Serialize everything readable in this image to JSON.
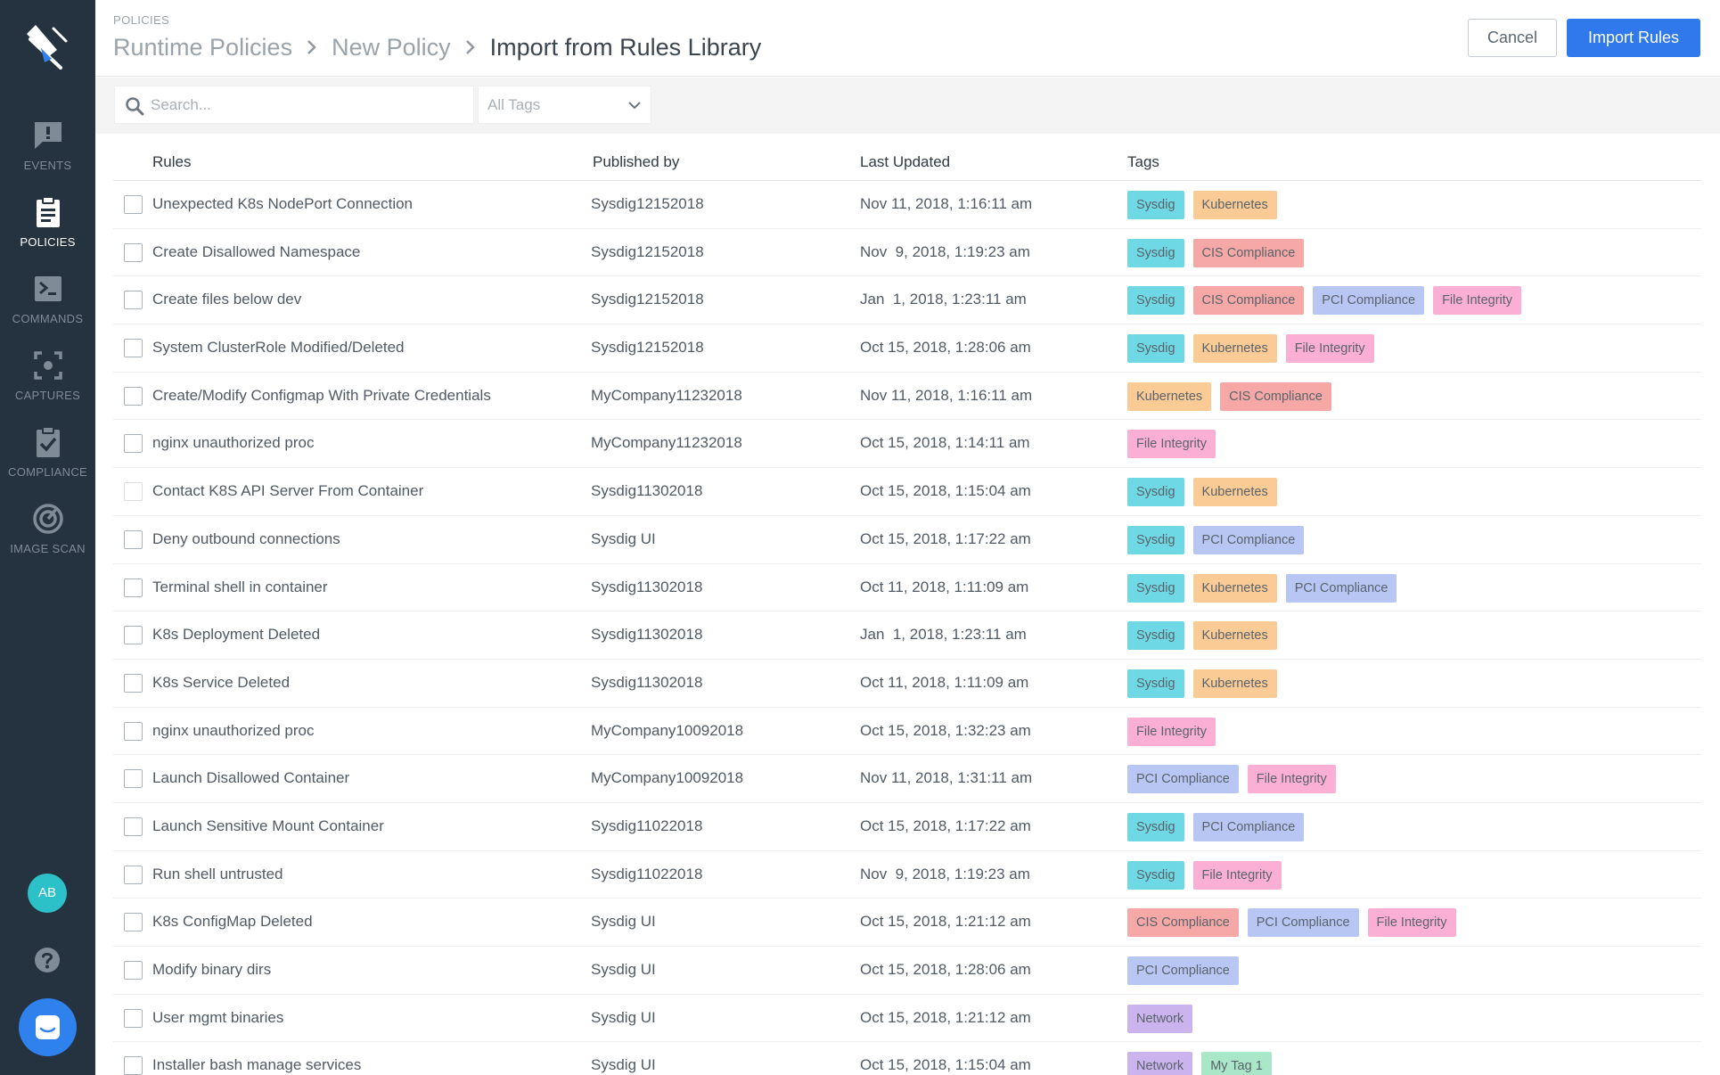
{
  "nav": {
    "items": [
      {
        "label": "EVENTS",
        "icon": "alert-message-icon",
        "active": false
      },
      {
        "label": "POLICIES",
        "icon": "clipboard-icon",
        "active": true
      },
      {
        "label": "COMMANDS",
        "icon": "terminal-icon",
        "active": false
      },
      {
        "label": "CAPTURES",
        "icon": "capture-frame-icon",
        "active": false
      },
      {
        "label": "COMPLIANCE",
        "icon": "clipboard-check-icon",
        "active": false
      },
      {
        "label": "IMAGE SCAN",
        "icon": "radar-icon",
        "active": false
      }
    ],
    "avatar_initials": "AB"
  },
  "header": {
    "section_label": "POLICIES",
    "breadcrumbs": [
      "Runtime Policies",
      "New Policy",
      "Import from Rules Library"
    ],
    "cancel_label": "Cancel",
    "import_label": "Import Rules"
  },
  "filters": {
    "search_placeholder": "Search...",
    "tags_select_value": "All Tags"
  },
  "table": {
    "columns": [
      "Rules",
      "Published by",
      "Last Updated",
      "Tags"
    ],
    "rows": [
      {
        "rule": "Unexpected K8s NodePort Connection",
        "published_by": "Sysdig12152018",
        "last_updated": "Nov 11, 2018, 1:16:11 am",
        "tags": [
          "Sysdig",
          "Kubernetes"
        ]
      },
      {
        "rule": "Create Disallowed Namespace",
        "published_by": "Sysdig12152018",
        "last_updated": "Nov  9, 2018, 1:19:23 am",
        "tags": [
          "Sysdig",
          "CIS Compliance"
        ]
      },
      {
        "rule": "Create files below dev",
        "published_by": "Sysdig12152018",
        "last_updated": "Jan  1, 2018, 1:23:11 am",
        "tags": [
          "Sysdig",
          "CIS Compliance",
          "PCI Compliance",
          "File Integrity"
        ]
      },
      {
        "rule": "System ClusterRole Modified/Deleted",
        "published_by": "Sysdig12152018",
        "last_updated": "Oct 15, 2018, 1:28:06 am",
        "tags": [
          "Sysdig",
          "Kubernetes",
          "File Integrity"
        ]
      },
      {
        "rule": "Create/Modify Configmap With Private Credentials",
        "published_by": "MyCompany11232018",
        "last_updated": "Nov 11, 2018, 1:16:11 am",
        "tags": [
          "Kubernetes",
          "CIS Compliance"
        ]
      },
      {
        "rule": "nginx unauthorized proc",
        "published_by": "MyCompany11232018",
        "last_updated": "Oct 15, 2018, 1:14:11 am",
        "tags": [
          "File Integrity"
        ]
      },
      {
        "rule": "Contact K8S API Server From Container",
        "published_by": "Sysdig11302018",
        "last_updated": "Oct 15, 2018, 1:15:04 am",
        "tags": [
          "Sysdig",
          "Kubernetes"
        ],
        "light_checkbox": true
      },
      {
        "rule": "Deny outbound connections",
        "published_by": "Sysdig UI",
        "last_updated": "Oct 15, 2018, 1:17:22 am",
        "tags": [
          "Sysdig",
          "PCI Compliance"
        ]
      },
      {
        "rule": "Terminal shell in container",
        "published_by": "Sysdig11302018",
        "last_updated": "Oct 11, 2018, 1:11:09 am",
        "tags": [
          "Sysdig",
          "Kubernetes",
          "PCI Compliance"
        ]
      },
      {
        "rule": "K8s Deployment Deleted",
        "published_by": "Sysdig11302018",
        "last_updated": "Jan  1, 2018, 1:23:11 am",
        "tags": [
          "Sysdig",
          "Kubernetes"
        ]
      },
      {
        "rule": "K8s Service Deleted",
        "published_by": "Sysdig11302018",
        "last_updated": "Oct 11, 2018, 1:11:09 am",
        "tags": [
          "Sysdig",
          "Kubernetes"
        ]
      },
      {
        "rule": "nginx unauthorized proc",
        "published_by": "MyCompany10092018",
        "last_updated": "Oct 15, 2018, 1:32:23 am",
        "tags": [
          "File Integrity"
        ]
      },
      {
        "rule": "Launch Disallowed Container",
        "published_by": "MyCompany10092018",
        "last_updated": "Nov 11, 2018, 1:31:11 am",
        "tags": [
          "PCI Compliance",
          "File Integrity"
        ]
      },
      {
        "rule": "Launch Sensitive Mount Container",
        "published_by": "Sysdig11022018",
        "last_updated": "Oct 15, 2018, 1:17:22 am",
        "tags": [
          "Sysdig",
          "PCI Compliance"
        ]
      },
      {
        "rule": "Run shell untrusted",
        "published_by": "Sysdig11022018",
        "last_updated": "Nov  9, 2018, 1:19:23 am",
        "tags": [
          "Sysdig",
          "File Integrity"
        ]
      },
      {
        "rule": "K8s ConfigMap Deleted",
        "published_by": "Sysdig UI",
        "last_updated": "Oct 15, 2018, 1:21:12 am",
        "tags": [
          "CIS Compliance",
          "PCI Compliance",
          "File Integrity"
        ]
      },
      {
        "rule": "Modify binary dirs",
        "published_by": "Sysdig UI",
        "last_updated": "Oct 15, 2018, 1:28:06 am",
        "tags": [
          "PCI Compliance"
        ]
      },
      {
        "rule": "User mgmt binaries",
        "published_by": "Sysdig UI",
        "last_updated": "Oct 15, 2018, 1:21:12 am",
        "tags": [
          "Network"
        ]
      },
      {
        "rule": "Installer bash manage services",
        "published_by": "Sysdig UI",
        "last_updated": "Oct 15, 2018, 1:15:04 am",
        "tags": [
          "Network",
          "My Tag 1"
        ]
      }
    ]
  },
  "tag_colors": {
    "Sysdig": "#6ed8e4",
    "Kubernetes": "#fbcb95",
    "CIS Compliance": "#f5a8a5",
    "PCI Compliance": "#b8c6f4",
    "File Integrity": "#fbafd4",
    "Network": "#cbb3ee",
    "My Tag 1": "#a9e7c8"
  },
  "colors": {
    "sidebar_bg": "#25323f",
    "accent_blue": "#2f79ec",
    "avatar_teal": "#2cc1c9"
  }
}
